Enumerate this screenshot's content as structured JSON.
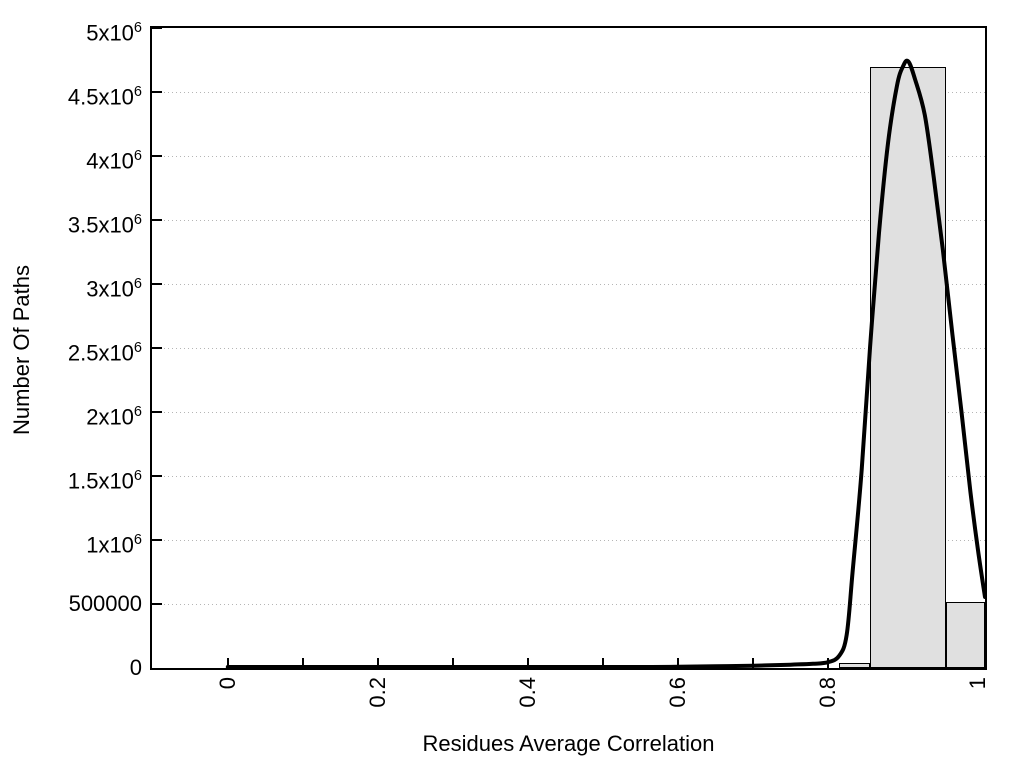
{
  "chart_data": {
    "type": "histogram+line",
    "title": "",
    "xlabel": "Residues Average Correlation",
    "ylabel": "Number Of Paths",
    "xlim": [
      -0.101,
      1.0093
    ],
    "ylim": [
      0,
      5000000
    ],
    "grid": "horizontal dotted lines at y major ticks",
    "legend": "none",
    "x_ticks": [
      {
        "v": 0,
        "label": "0"
      },
      {
        "v": 0.1,
        "label": ""
      },
      {
        "v": 0.2,
        "label": "0.2"
      },
      {
        "v": 0.3,
        "label": ""
      },
      {
        "v": 0.4,
        "label": "0.4"
      },
      {
        "v": 0.5,
        "label": ""
      },
      {
        "v": 0.6,
        "label": "0.6"
      },
      {
        "v": 0.7,
        "label": ""
      },
      {
        "v": 0.8,
        "label": "0.8"
      },
      {
        "v": 0.9,
        "label": ""
      },
      {
        "v": 1,
        "label": "1"
      }
    ],
    "y_ticks": [
      {
        "v": 0,
        "label": "0"
      },
      {
        "v": 500000,
        "label": "500000"
      },
      {
        "v": 1000000,
        "label": "1x10^6"
      },
      {
        "v": 1500000,
        "label": "1.5x10^6"
      },
      {
        "v": 2000000,
        "label": "2x10^6"
      },
      {
        "v": 2500000,
        "label": "2.5x10^6"
      },
      {
        "v": 3000000,
        "label": "3x10^6"
      },
      {
        "v": 3500000,
        "label": "3.5x10^6"
      },
      {
        "v": 4000000,
        "label": "4x10^6"
      },
      {
        "v": 4500000,
        "label": "4.5x10^6"
      },
      {
        "v": 5000000,
        "label": "5x10^6"
      }
    ],
    "bars": [
      {
        "x0": 0.8146,
        "x1": 0.856,
        "value": 39000
      },
      {
        "x0": 0.856,
        "x1": 0.9573,
        "value": 4695000
      },
      {
        "x0": 0.9573,
        "x1": 1.0093,
        "value": 516000
      }
    ],
    "curve_points": [
      [
        0,
        8000
      ],
      [
        0.05,
        8000
      ],
      [
        0.1,
        8000
      ],
      [
        0.15,
        8000
      ],
      [
        0.2,
        8000
      ],
      [
        0.25,
        8000
      ],
      [
        0.3,
        8000
      ],
      [
        0.35,
        8000
      ],
      [
        0.4,
        8000
      ],
      [
        0.45,
        8000
      ],
      [
        0.5,
        8000
      ],
      [
        0.55,
        8000
      ],
      [
        0.6,
        9000
      ],
      [
        0.65,
        13000
      ],
      [
        0.7,
        18000
      ],
      [
        0.75,
        26000
      ],
      [
        0.78,
        33000
      ],
      [
        0.8,
        45000
      ],
      [
        0.815,
        95000
      ],
      [
        0.825,
        260000
      ],
      [
        0.833,
        760000
      ],
      [
        0.845,
        1550000
      ],
      [
        0.856,
        2500000
      ],
      [
        0.868,
        3400000
      ],
      [
        0.88,
        4100000
      ],
      [
        0.892,
        4550000
      ],
      [
        0.9,
        4700000
      ],
      [
        0.907,
        4740000
      ],
      [
        0.916,
        4600000
      ],
      [
        0.929,
        4320000
      ],
      [
        0.941,
        3830000
      ],
      [
        0.953,
        3270000
      ],
      [
        0.966,
        2600000
      ],
      [
        0.978,
        2000000
      ],
      [
        0.99,
        1370000
      ],
      [
        1.0,
        920000
      ],
      [
        1.0093,
        555000
      ]
    ],
    "colors": {
      "bar_fill": "#e0e0e0",
      "bar_border": "#000000",
      "curve": "#000000",
      "grid": "#b5b5b5",
      "axis": "#000000",
      "text": "#000000",
      "background": "#ffffff"
    }
  }
}
